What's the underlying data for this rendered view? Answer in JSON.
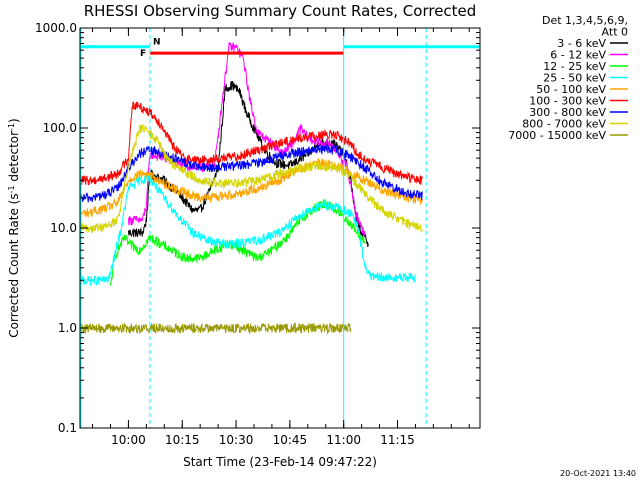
{
  "chart_data": {
    "type": "line",
    "title": "RHESSI Observing Summary Count Rates, Corrected",
    "xlabel": "Start Time (23-Feb-14 09:47:22)",
    "ylabel_parts": [
      "Corrected Count Rate (s",
      "-1",
      " detector",
      "-1",
      ")"
    ],
    "yscale": "log",
    "ylim": [
      0.1,
      1000
    ],
    "xlim": [
      -13.5,
      98
    ],
    "y_ticks": [
      {
        "v": 1000,
        "label": "1000.0"
      },
      {
        "v": 100,
        "label": "100.0"
      },
      {
        "v": 10,
        "label": "10.0"
      },
      {
        "v": 1,
        "label": "1.0"
      },
      {
        "v": 0.1,
        "label": "0.1"
      }
    ],
    "x_ticks": [
      {
        "t": 0,
        "label": "10:00"
      },
      {
        "t": 15,
        "label": "10:15"
      },
      {
        "t": 30,
        "label": "10:30"
      },
      {
        "t": 45,
        "label": "10:45"
      },
      {
        "t": 60,
        "label": "11:00"
      },
      {
        "t": 75,
        "label": "11:15"
      }
    ],
    "legend_header": [
      "Det 1,3,4,5,6,9,",
      "Att 0"
    ],
    "series": [
      {
        "name": "3 - 6 keV",
        "color": "#000000",
        "points": [
          [
            0,
            9
          ],
          [
            4,
            9
          ],
          [
            5,
            12
          ],
          [
            6,
            35
          ],
          [
            10,
            30
          ],
          [
            14,
            22
          ],
          [
            18,
            15
          ],
          [
            20,
            15
          ],
          [
            23,
            25
          ],
          [
            25,
            40
          ],
          [
            27,
            250
          ],
          [
            29,
            270
          ],
          [
            31,
            230
          ],
          [
            33,
            140
          ],
          [
            35,
            100
          ],
          [
            38,
            60
          ],
          [
            41,
            45
          ],
          [
            45,
            42
          ],
          [
            50,
            55
          ],
          [
            53,
            70
          ],
          [
            57,
            72
          ],
          [
            60,
            55
          ],
          [
            62,
            30
          ],
          [
            63.5,
            12
          ],
          [
            65,
            9
          ],
          [
            67,
            7
          ]
        ]
      },
      {
        "name": "6 - 12 keV",
        "color": "#ff00ff",
        "points": [
          [
            0,
            12
          ],
          [
            4,
            12
          ],
          [
            5,
            17
          ],
          [
            6,
            55
          ],
          [
            10,
            50
          ],
          [
            15,
            42
          ],
          [
            20,
            40
          ],
          [
            24,
            42
          ],
          [
            26,
            170
          ],
          [
            28,
            650
          ],
          [
            30,
            640
          ],
          [
            32,
            500
          ],
          [
            34,
            180
          ],
          [
            36,
            90
          ],
          [
            40,
            70
          ],
          [
            43,
            55
          ],
          [
            46,
            72
          ],
          [
            48,
            100
          ],
          [
            50,
            80
          ],
          [
            53,
            70
          ],
          [
            56,
            70
          ],
          [
            58,
            60
          ],
          [
            61,
            40
          ],
          [
            63.5,
            14
          ],
          [
            65,
            10
          ],
          [
            66,
            9
          ]
        ]
      },
      {
        "name": "12 - 25 keV",
        "color": "#00ff00",
        "points": [
          [
            -5,
            2.5
          ],
          [
            -4,
            5
          ],
          [
            -2,
            7
          ],
          [
            -1,
            8
          ],
          [
            0,
            7
          ],
          [
            3,
            6
          ],
          [
            6,
            8
          ],
          [
            9,
            7
          ],
          [
            12,
            6
          ],
          [
            16,
            5
          ],
          [
            20,
            5
          ],
          [
            24,
            6
          ],
          [
            28,
            7
          ],
          [
            32,
            6
          ],
          [
            36,
            5
          ],
          [
            40,
            6
          ],
          [
            44,
            8
          ],
          [
            48,
            12
          ],
          [
            51,
            15
          ],
          [
            55,
            18
          ],
          [
            58,
            15
          ],
          [
            61,
            12
          ],
          [
            64,
            9
          ],
          [
            66,
            7
          ]
        ]
      },
      {
        "name": "25 - 50 keV",
        "color": "#00ffff",
        "points": [
          [
            -13.5,
            3
          ],
          [
            -10,
            3
          ],
          [
            -8,
            3
          ],
          [
            -6,
            3
          ],
          [
            -5,
            3.5
          ],
          [
            -2,
            10
          ],
          [
            0,
            25
          ],
          [
            3,
            30
          ],
          [
            6,
            32
          ],
          [
            8,
            25
          ],
          [
            10,
            20
          ],
          [
            14,
            13
          ],
          [
            18,
            9
          ],
          [
            22,
            7.5
          ],
          [
            26,
            7
          ],
          [
            30,
            7
          ],
          [
            36,
            7.5
          ],
          [
            42,
            9
          ],
          [
            46,
            12
          ],
          [
            50,
            15
          ],
          [
            55,
            17
          ],
          [
            59,
            16
          ],
          [
            62,
            14
          ],
          [
            64,
            10
          ],
          [
            66,
            4
          ],
          [
            68,
            3.2
          ],
          [
            72,
            3.2
          ],
          [
            76,
            3.2
          ],
          [
            80,
            3.2
          ]
        ]
      },
      {
        "name": "50 - 100 keV",
        "color": "#ffa500",
        "points": [
          [
            -13.5,
            14
          ],
          [
            -10,
            14.5
          ],
          [
            -6,
            16
          ],
          [
            -3,
            18
          ],
          [
            0,
            30
          ],
          [
            3,
            35
          ],
          [
            6,
            34
          ],
          [
            10,
            28
          ],
          [
            14,
            24
          ],
          [
            18,
            21
          ],
          [
            22,
            20
          ],
          [
            26,
            21
          ],
          [
            30,
            22
          ],
          [
            36,
            25
          ],
          [
            42,
            30
          ],
          [
            46,
            37
          ],
          [
            50,
            42
          ],
          [
            54,
            45
          ],
          [
            58,
            42
          ],
          [
            62,
            36
          ],
          [
            66,
            30
          ],
          [
            70,
            25
          ],
          [
            74,
            22
          ],
          [
            78,
            20
          ],
          [
            82,
            19
          ]
        ]
      },
      {
        "name": "100 - 300 keV",
        "color": "#ff0000",
        "points": [
          [
            -13.5,
            30
          ],
          [
            -10,
            30
          ],
          [
            -6,
            32
          ],
          [
            -3,
            35
          ],
          [
            0,
            50
          ],
          [
            1,
            170
          ],
          [
            3,
            165
          ],
          [
            6,
            145
          ],
          [
            9,
            110
          ],
          [
            12,
            70
          ],
          [
            15,
            52
          ],
          [
            18,
            48
          ],
          [
            22,
            48
          ],
          [
            26,
            50
          ],
          [
            30,
            52
          ],
          [
            36,
            60
          ],
          [
            42,
            70
          ],
          [
            48,
            80
          ],
          [
            54,
            85
          ],
          [
            58,
            85
          ],
          [
            62,
            70
          ],
          [
            64,
            55
          ],
          [
            66,
            48
          ],
          [
            70,
            42
          ],
          [
            74,
            36
          ],
          [
            78,
            32
          ],
          [
            82,
            30
          ]
        ]
      },
      {
        "name": "300 - 800 keV",
        "color": "#0000ff",
        "points": [
          [
            -13.5,
            20
          ],
          [
            -10,
            20
          ],
          [
            -6,
            22
          ],
          [
            -3,
            25
          ],
          [
            0,
            40
          ],
          [
            3,
            55
          ],
          [
            6,
            60
          ],
          [
            10,
            55
          ],
          [
            14,
            48
          ],
          [
            18,
            42
          ],
          [
            22,
            40
          ],
          [
            26,
            41
          ],
          [
            30,
            42
          ],
          [
            36,
            45
          ],
          [
            42,
            52
          ],
          [
            48,
            58
          ],
          [
            54,
            62
          ],
          [
            58,
            60
          ],
          [
            62,
            52
          ],
          [
            66,
            40
          ],
          [
            70,
            30
          ],
          [
            74,
            25
          ],
          [
            78,
            22
          ],
          [
            82,
            21
          ]
        ]
      },
      {
        "name": "800 - 7000 keV",
        "color": "#d4d400",
        "points": [
          [
            -13.5,
            10
          ],
          [
            -10,
            10
          ],
          [
            -6,
            10.5
          ],
          [
            -3,
            12
          ],
          [
            0,
            40
          ],
          [
            3,
            100
          ],
          [
            5,
            95
          ],
          [
            8,
            75
          ],
          [
            10,
            55
          ],
          [
            13,
            42
          ],
          [
            16,
            36
          ],
          [
            20,
            30
          ],
          [
            25,
            28
          ],
          [
            30,
            28
          ],
          [
            36,
            30
          ],
          [
            42,
            35
          ],
          [
            48,
            40
          ],
          [
            54,
            42
          ],
          [
            58,
            40
          ],
          [
            62,
            33
          ],
          [
            66,
            22
          ],
          [
            70,
            16
          ],
          [
            74,
            13
          ],
          [
            78,
            11
          ],
          [
            82,
            10
          ]
        ]
      },
      {
        "name": "7000 - 15000 keV",
        "color": "#999900",
        "points": [
          [
            -13.5,
            1
          ],
          [
            -12,
            1
          ],
          [
            -6,
            1
          ],
          [
            -2,
            1
          ],
          [
            0,
            1
          ],
          [
            4,
            1
          ],
          [
            6,
            1
          ],
          [
            8,
            1
          ],
          [
            12,
            1
          ],
          [
            16,
            1
          ],
          [
            18,
            1
          ],
          [
            22,
            1
          ],
          [
            24,
            1
          ],
          [
            34,
            1
          ],
          [
            40,
            1
          ],
          [
            44,
            1
          ],
          [
            48,
            1
          ],
          [
            52,
            1
          ],
          [
            54,
            1
          ],
          [
            58,
            1
          ],
          [
            62,
            1
          ]
        ]
      }
    ],
    "flags": [
      {
        "label": "F",
        "color": "#ff0000",
        "t0": 6,
        "t1": 60,
        "y": 560
      },
      {
        "label": "N",
        "color": "#00ffff",
        "t0": -13.5,
        "t1": 6,
        "y": 650
      }
    ],
    "night_segments": [
      {
        "t0": -13.5,
        "t1": 6,
        "y": 650
      },
      {
        "t0": 60,
        "t1": 98,
        "y": 650
      }
    ],
    "markers_dashed": [
      6,
      83
    ],
    "markers_solid": [
      -13.5,
      60
    ],
    "footer": "20-Oct-2021 13:40"
  }
}
